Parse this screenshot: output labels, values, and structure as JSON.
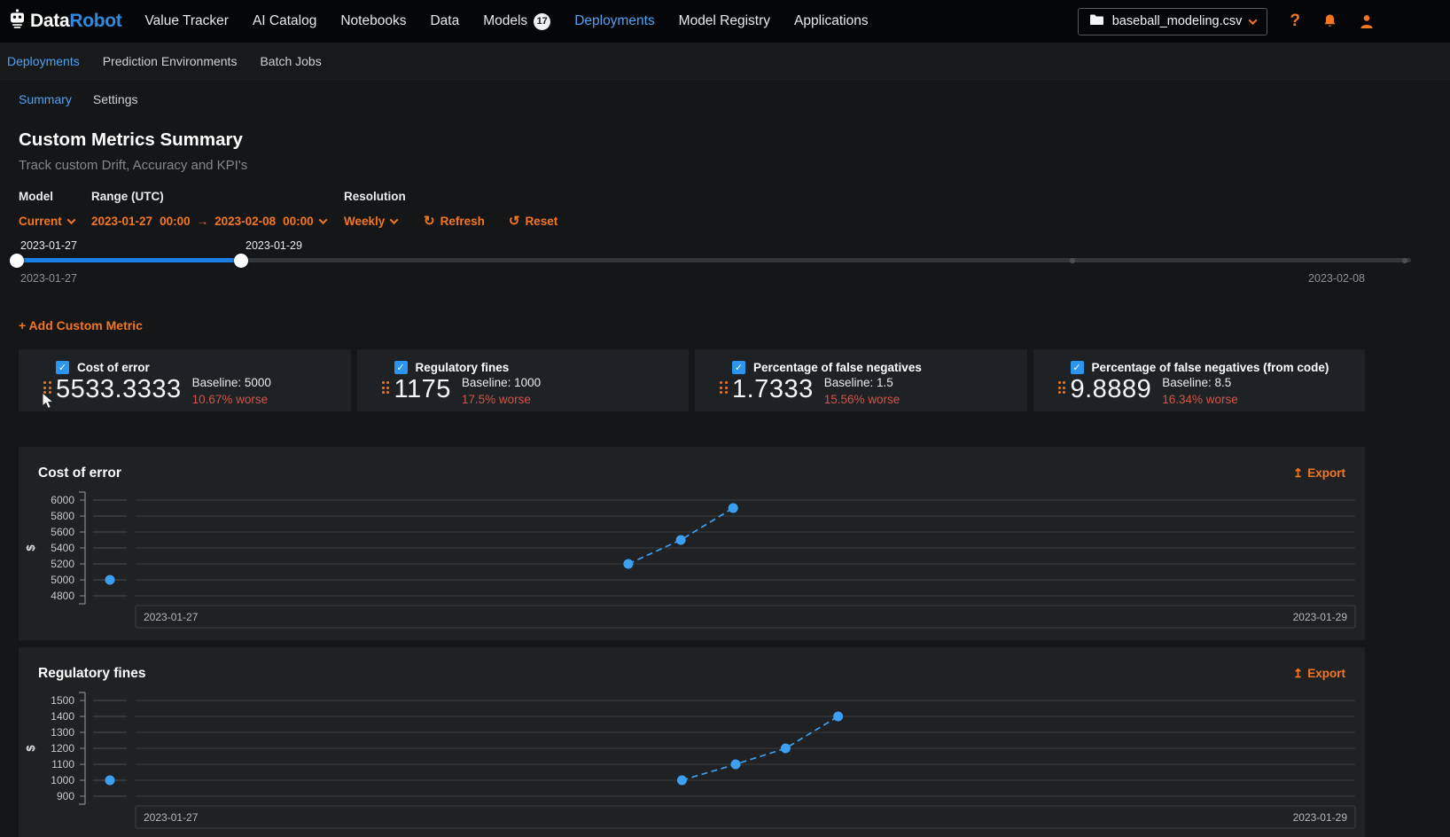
{
  "topnav": {
    "brand": {
      "part1": "Data",
      "part2": "Robot"
    },
    "items": [
      {
        "label": "Value Tracker"
      },
      {
        "label": "AI Catalog"
      },
      {
        "label": "Notebooks"
      },
      {
        "label": "Data"
      },
      {
        "label": "Models",
        "badge": "17"
      },
      {
        "label": "Deployments",
        "active": true
      },
      {
        "label": "Model Registry"
      },
      {
        "label": "Applications"
      }
    ],
    "project_selector": {
      "value": "baseball_modeling.csv"
    }
  },
  "subnav": {
    "items": [
      {
        "label": "Deployments",
        "active": true
      },
      {
        "label": "Prediction Environments"
      },
      {
        "label": "Batch Jobs"
      }
    ]
  },
  "tabs": {
    "items": [
      {
        "label": "Summary",
        "active": true
      },
      {
        "label": "Settings"
      }
    ]
  },
  "header": {
    "title": "Custom Metrics Summary",
    "subtitle": "Track custom Drift, Accuracy and KPI's"
  },
  "controls": {
    "model_label": "Model",
    "model_value": "Current",
    "range_label": "Range (UTC)",
    "range_start_date": "2023-01-27",
    "range_start_time": "00:00",
    "range_arrow": "→",
    "range_end_date": "2023-02-08",
    "range_end_time": "00:00",
    "resolution_label": "Resolution",
    "resolution_value": "Weekly",
    "refresh_label": "Refresh",
    "reset_label": "Reset"
  },
  "slider": {
    "start_handle_label": "2023-01-27",
    "end_handle_label": "2023-01-29",
    "min_label": "2023-01-27",
    "max_label": "2023-02-08"
  },
  "add_metric_label": "+ Add Custom Metric",
  "metric_cards": [
    {
      "name": "Cost of error",
      "value": "5533.3333",
      "baseline": "Baseline: 5000",
      "delta": "10.67% worse",
      "checked": true
    },
    {
      "name": "Regulatory fines",
      "value": "1175",
      "baseline": "Baseline: 1000",
      "delta": "17.5% worse",
      "checked": true
    },
    {
      "name": "Percentage of false negatives",
      "value": "1.7333",
      "baseline": "Baseline: 1.5",
      "delta": "15.56% worse",
      "checked": true
    },
    {
      "name": "Percentage of false negatives (from code)",
      "value": "9.8889",
      "baseline": "Baseline: 8.5",
      "delta": "16.34% worse",
      "checked": true
    }
  ],
  "chart_data": [
    {
      "type": "line",
      "title": "Cost of error",
      "export_label": "Export",
      "series_name": "Cost of error",
      "line_style": "dashed",
      "grid": true,
      "x_start_label": "2023-01-27",
      "x_end_label": "2023-01-29",
      "ylim": [
        4800,
        6100
      ],
      "yticks": [
        4800,
        5000,
        5200,
        5400,
        5600,
        5800,
        6000
      ],
      "baseline_value": 5000,
      "points": [
        {
          "x_fraction": 0.404,
          "value": 5200
        },
        {
          "x_fraction": 0.447,
          "value": 5500
        },
        {
          "x_fraction": 0.49,
          "value": 5900
        }
      ]
    },
    {
      "type": "line",
      "title": "Regulatory fines",
      "export_label": "Export",
      "series_name": "Regulatory fines",
      "line_style": "dashed",
      "grid": true,
      "x_start_label": "2023-01-27",
      "x_end_label": "2023-01-29",
      "ylim": [
        900,
        1550
      ],
      "yticks": [
        900,
        1000,
        1100,
        1200,
        1300,
        1400,
        1500
      ],
      "baseline_value": 1000,
      "points": [
        {
          "x_fraction": 0.448,
          "value": 1000
        },
        {
          "x_fraction": 0.492,
          "value": 1100
        },
        {
          "x_fraction": 0.533,
          "value": 1200
        },
        {
          "x_fraction": 0.576,
          "value": 1400
        }
      ]
    }
  ],
  "icons": {
    "help": "?",
    "check": "✓",
    "refresh": "↻",
    "reset": "↺",
    "export": "↥",
    "y_axis": "$"
  },
  "colors": {
    "orange": "#f4771f",
    "link_blue": "#4da3f5",
    "point_blue": "#3ca0f2",
    "slider_blue": "#1a7fe8",
    "checkbox_blue": "#2b95ef",
    "delta_red": "#d25549",
    "brand_blue": "#2e8be0"
  }
}
